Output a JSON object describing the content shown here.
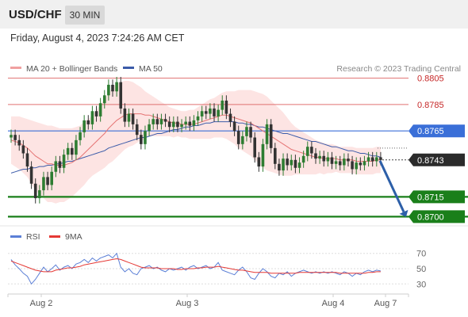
{
  "header": {
    "symbol": "USD/CHF",
    "timeframe": "30 MIN"
  },
  "datetime": "Friday, August 4, 2023 7:24:26 AM CET",
  "colors": {
    "bull": "#2e7d32",
    "bear": "#333333",
    "ma20": "#e53935",
    "ma50": "#3b5ba9",
    "band": "#fde4e3",
    "resistance": "#e07070",
    "pivot": "#3a6fd8",
    "support": "#1a7f1a",
    "arrow": "#2d5fa8",
    "rsi": "#5b7fd6",
    "rsi_ma": "#e53935"
  },
  "legend": {
    "ma20": "MA 20 + Bollinger Bands",
    "ma50": "MA 50",
    "credit": "Research © 2023 Trading Central"
  },
  "rsi_legend": {
    "rsi": "RSI",
    "ma": "9MA"
  },
  "chart_data": {
    "type": "candlestick",
    "ylim": [
      0.8696,
      0.8809
    ],
    "levels": [
      {
        "label": "0.8805",
        "value": 0.8805,
        "kind": "resistance"
      },
      {
        "label": "0.8785",
        "value": 0.8785,
        "kind": "resistance"
      },
      {
        "label": "0.8765",
        "value": 0.8765,
        "kind": "pivot"
      },
      {
        "label": "0.8743",
        "value": 0.8743,
        "kind": "last"
      },
      {
        "label": "0.8715",
        "value": 0.8715,
        "kind": "support"
      },
      {
        "label": "0.8700",
        "value": 0.87,
        "kind": "support"
      }
    ],
    "x_ticks": [
      "Aug 2",
      "Aug 3",
      "Aug 4",
      "Aug 7"
    ],
    "projection": {
      "from": 0.8743,
      "to": 0.87,
      "direction": "down"
    },
    "candles": [
      [
        0.876,
        0.8762
      ],
      [
        0.8762,
        0.8758
      ],
      [
        0.8758,
        0.8754
      ],
      [
        0.8754,
        0.8748
      ],
      [
        0.8748,
        0.8738
      ],
      [
        0.8738,
        0.8725
      ],
      [
        0.8725,
        0.8714
      ],
      [
        0.8714,
        0.872
      ],
      [
        0.872,
        0.873
      ],
      [
        0.873,
        0.8724
      ],
      [
        0.8724,
        0.8734
      ],
      [
        0.8734,
        0.8742
      ],
      [
        0.8742,
        0.8737
      ],
      [
        0.8737,
        0.8747
      ],
      [
        0.8747,
        0.8752
      ],
      [
        0.8752,
        0.8747
      ],
      [
        0.8747,
        0.8758
      ],
      [
        0.8758,
        0.8764
      ],
      [
        0.8764,
        0.8773
      ],
      [
        0.8773,
        0.877
      ],
      [
        0.877,
        0.878
      ],
      [
        0.878,
        0.8776
      ],
      [
        0.8776,
        0.8786
      ],
      [
        0.8786,
        0.8792
      ],
      [
        0.8792,
        0.88
      ],
      [
        0.88,
        0.8795
      ],
      [
        0.8795,
        0.8802
      ],
      [
        0.8802,
        0.8782
      ],
      [
        0.8782,
        0.8772
      ],
      [
        0.8772,
        0.8778
      ],
      [
        0.8778,
        0.877
      ],
      [
        0.877,
        0.8762
      ],
      [
        0.8762,
        0.8755
      ],
      [
        0.8755,
        0.8765
      ],
      [
        0.8765,
        0.877
      ],
      [
        0.877,
        0.8774
      ],
      [
        0.8774,
        0.877
      ],
      [
        0.877,
        0.8774
      ],
      [
        0.8774,
        0.8772
      ],
      [
        0.8772,
        0.8768
      ],
      [
        0.8768,
        0.8772
      ],
      [
        0.8772,
        0.8768
      ],
      [
        0.8768,
        0.877
      ],
      [
        0.877,
        0.8772
      ],
      [
        0.8772,
        0.8769
      ],
      [
        0.8769,
        0.8773
      ],
      [
        0.8773,
        0.8776
      ],
      [
        0.8776,
        0.878
      ],
      [
        0.878,
        0.8778
      ],
      [
        0.8778,
        0.8782
      ],
      [
        0.8782,
        0.8776
      ],
      [
        0.8776,
        0.8781
      ],
      [
        0.8781,
        0.8788
      ],
      [
        0.8788,
        0.8778
      ],
      [
        0.8778,
        0.8772
      ],
      [
        0.8772,
        0.8765
      ],
      [
        0.8765,
        0.8755
      ],
      [
        0.8755,
        0.8761
      ],
      [
        0.8761,
        0.8768
      ],
      [
        0.8768,
        0.876
      ],
      [
        0.876,
        0.8745
      ],
      [
        0.8745,
        0.8738
      ],
      [
        0.8738,
        0.8755
      ],
      [
        0.8755,
        0.877
      ],
      [
        0.877,
        0.8752
      ],
      [
        0.8752,
        0.874
      ],
      [
        0.874,
        0.8735
      ],
      [
        0.8735,
        0.8744
      ],
      [
        0.8744,
        0.8739
      ],
      [
        0.8739,
        0.8743
      ],
      [
        0.8743,
        0.8737
      ],
      [
        0.8737,
        0.8741
      ],
      [
        0.8741,
        0.8746
      ],
      [
        0.8746,
        0.8753
      ],
      [
        0.8753,
        0.8748
      ],
      [
        0.8748,
        0.8744
      ],
      [
        0.8744,
        0.8746
      ],
      [
        0.8746,
        0.8742
      ],
      [
        0.8742,
        0.8745
      ],
      [
        0.8745,
        0.874
      ],
      [
        0.874,
        0.8742
      ],
      [
        0.8742,
        0.8739
      ],
      [
        0.8739,
        0.8744
      ],
      [
        0.8744,
        0.8742
      ],
      [
        0.8742,
        0.8736
      ],
      [
        0.8736,
        0.8741
      ],
      [
        0.8741,
        0.8739
      ],
      [
        0.8739,
        0.8742
      ],
      [
        0.8742,
        0.8745
      ],
      [
        0.8745,
        0.8742
      ],
      [
        0.8742,
        0.8745
      ],
      [
        0.8745,
        0.8743
      ]
    ],
    "ma20": [
      0.8758,
      0.8757,
      0.8756,
      0.8754,
      0.8752,
      0.8749,
      0.8746,
      0.8744,
      0.8742,
      0.874,
      0.874,
      0.8739,
      0.8739,
      0.8739,
      0.874,
      0.8741,
      0.8743,
      0.8745,
      0.8748,
      0.8751,
      0.8754,
      0.8757,
      0.876,
      0.8763,
      0.8767,
      0.877,
      0.8773,
      0.8775,
      0.8777,
      0.8778,
      0.8778,
      0.8778,
      0.8778,
      0.8777,
      0.8777,
      0.8776,
      0.8775,
      0.8774,
      0.8773,
      0.8772,
      0.8771,
      0.8771,
      0.877,
      0.877,
      0.877,
      0.877,
      0.8771,
      0.8772,
      0.8773,
      0.8774,
      0.8775,
      0.8776,
      0.8777,
      0.8777,
      0.8776,
      0.8775,
      0.8774,
      0.8773,
      0.8772,
      0.8771,
      0.8769,
      0.8767,
      0.8765,
      0.8763,
      0.8761,
      0.8759,
      0.8757,
      0.8755,
      0.8753,
      0.8751,
      0.875,
      0.8749,
      0.8748,
      0.8747,
      0.8746,
      0.8745,
      0.8745,
      0.8744,
      0.8744,
      0.8744,
      0.8744,
      0.8743,
      0.8743,
      0.8743,
      0.8743,
      0.8742,
      0.8742,
      0.8742,
      0.8742,
      0.8742,
      0.8743,
      0.8743
    ],
    "ma50": [
      0.8733,
      0.8734,
      0.8735,
      0.8736,
      0.8736,
      0.8737,
      0.8737,
      0.8738,
      0.8738,
      0.8739,
      0.8739,
      0.874,
      0.874,
      0.8741,
      0.8742,
      0.8742,
      0.8743,
      0.8744,
      0.8745,
      0.8746,
      0.8747,
      0.8748,
      0.8749,
      0.875,
      0.8752,
      0.8753,
      0.8754,
      0.8755,
      0.8756,
      0.8757,
      0.8758,
      0.8759,
      0.876,
      0.876,
      0.8761,
      0.8762,
      0.8763,
      0.8763,
      0.8764,
      0.8765,
      0.8766,
      0.8766,
      0.8767,
      0.8768,
      0.8768,
      0.8769,
      0.8769,
      0.877,
      0.8771,
      0.8771,
      0.8772,
      0.8772,
      0.8772,
      0.8772,
      0.8772,
      0.8772,
      0.8771,
      0.8771,
      0.877,
      0.877,
      0.8769,
      0.8768,
      0.8768,
      0.8767,
      0.8766,
      0.8765,
      0.8764,
      0.8763,
      0.8763,
      0.8762,
      0.8761,
      0.876,
      0.8759,
      0.8758,
      0.8757,
      0.8757,
      0.8756,
      0.8755,
      0.8754,
      0.8753,
      0.8753,
      0.8752,
      0.8751,
      0.875,
      0.875,
      0.8749,
      0.8748,
      0.8748,
      0.8747,
      0.8746,
      0.8746,
      0.8745
    ],
    "band_width": [
      0.0018,
      0.0019,
      0.002,
      0.0021,
      0.0022,
      0.0024,
      0.0026,
      0.0027,
      0.0028,
      0.0029,
      0.0029,
      0.0029,
      0.0028,
      0.0028,
      0.0027,
      0.0026,
      0.0025,
      0.0024,
      0.0024,
      0.0023,
      0.0023,
      0.0024,
      0.0025,
      0.0026,
      0.0027,
      0.0028,
      0.0028,
      0.0027,
      0.0026,
      0.0025,
      0.0024,
      0.0022,
      0.002,
      0.0018,
      0.0016,
      0.0015,
      0.0014,
      0.0013,
      0.0012,
      0.0011,
      0.0011,
      0.001,
      0.001,
      0.001,
      0.0011,
      0.0011,
      0.0012,
      0.0013,
      0.0014,
      0.0015,
      0.0015,
      0.0016,
      0.0017,
      0.0018,
      0.0019,
      0.002,
      0.0022,
      0.0023,
      0.0024,
      0.0025,
      0.0026,
      0.0027,
      0.0028,
      0.0028,
      0.0027,
      0.0026,
      0.0025,
      0.0024,
      0.0022,
      0.002,
      0.0018,
      0.0017,
      0.0016,
      0.0015,
      0.0014,
      0.0013,
      0.0012,
      0.0012,
      0.0011,
      0.0011,
      0.001,
      0.001,
      0.001,
      0.001,
      0.001,
      0.001,
      0.001,
      0.001,
      0.001,
      0.001,
      0.001,
      0.001
    ],
    "rsi": {
      "ylim": [
        22,
        78
      ],
      "ticks": [
        70,
        50,
        30
      ],
      "rsi": [
        62,
        55,
        50,
        44,
        40,
        30,
        36,
        44,
        52,
        46,
        50,
        55,
        48,
        52,
        54,
        50,
        56,
        58,
        62,
        58,
        64,
        60,
        64,
        66,
        68,
        64,
        70,
        52,
        46,
        50,
        44,
        42,
        50,
        52,
        54,
        50,
        52,
        48,
        46,
        50,
        48,
        50,
        52,
        48,
        52,
        54,
        50,
        52,
        54,
        50,
        52,
        58,
        48,
        46,
        44,
        42,
        48,
        52,
        46,
        38,
        36,
        44,
        50,
        46,
        40,
        38,
        44,
        42,
        46,
        40,
        44,
        46,
        48,
        46,
        44,
        46,
        44,
        46,
        44,
        46,
        44,
        42,
        46,
        44,
        40,
        44,
        42,
        46,
        48,
        46,
        48,
        47
      ],
      "ma": [
        60,
        58,
        56,
        54,
        52,
        50,
        48,
        47,
        46,
        46,
        46,
        48,
        49,
        50,
        51,
        51,
        52,
        53,
        55,
        56,
        57,
        58,
        59,
        60,
        61,
        62,
        63,
        62,
        60,
        58,
        56,
        54,
        52,
        51,
        51,
        51,
        51,
        50,
        50,
        50,
        50,
        49,
        49,
        50,
        50,
        50,
        51,
        51,
        52,
        52,
        52,
        53,
        52,
        51,
        50,
        49,
        48,
        48,
        47,
        46,
        45,
        45,
        45,
        45,
        44,
        44,
        44,
        44,
        44,
        44,
        44,
        45,
        45,
        45,
        45,
        45,
        45,
        45,
        45,
        45,
        45,
        44,
        44,
        44,
        44,
        44,
        44,
        44,
        45,
        45,
        46,
        46
      ]
    }
  }
}
